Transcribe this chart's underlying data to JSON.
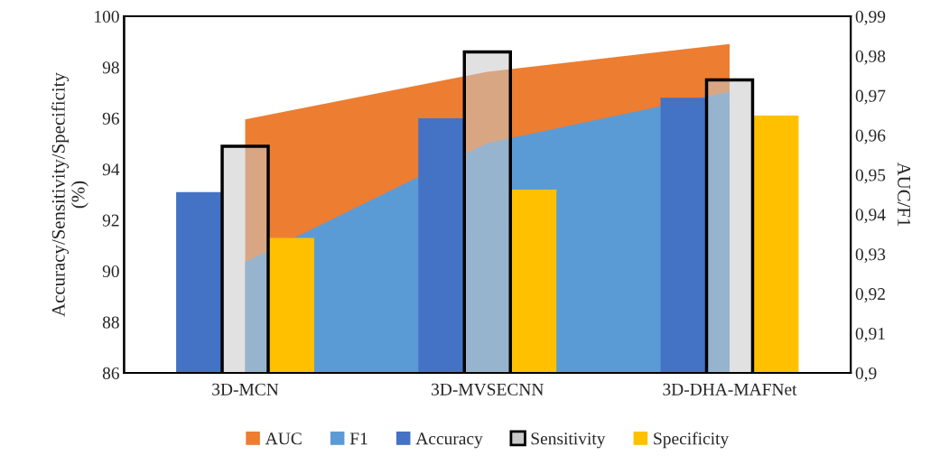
{
  "chart_data": {
    "type": "bar",
    "ylabel": "Accuracy/Sensitivity/Specificity\n(%)",
    "y2label": "AUC/F1",
    "categories": [
      "3D-MCN",
      "3D-MVSECNN",
      "3D-DHA-MAFNet"
    ],
    "series": [
      {
        "name": "AUC",
        "type": "area",
        "axis": "y2",
        "color": "#ed7d31",
        "values": [
          0.964,
          0.976,
          0.983
        ]
      },
      {
        "name": "F1",
        "type": "area",
        "axis": "y2",
        "color": "#5b9bd5",
        "values": [
          0.928,
          0.958,
          0.971
        ]
      },
      {
        "name": "Accuracy",
        "color": "#4472c4",
        "values": [
          93.1,
          96.0,
          96.8
        ]
      },
      {
        "name": "Sensitivity",
        "color": "#c9c9c9",
        "values": [
          94.9,
          98.6,
          97.5
        ]
      },
      {
        "name": "Specificity",
        "color": "#ffc000",
        "values": [
          91.3,
          93.2,
          96.1
        ]
      }
    ],
    "ylim": [
      86,
      100
    ],
    "yticks": [
      86,
      88,
      90,
      92,
      94,
      96,
      98,
      100
    ],
    "y2lim": [
      0.9,
      0.99
    ],
    "y2ticks": [
      {
        "value": 0.9,
        "label": "0,9"
      },
      {
        "value": 0.91,
        "label": "0,91"
      },
      {
        "value": 0.92,
        "label": "0,92"
      },
      {
        "value": 0.93,
        "label": "0,93"
      },
      {
        "value": 0.94,
        "label": "0,94"
      },
      {
        "value": 0.95,
        "label": "0,95"
      },
      {
        "value": 0.96,
        "label": "0,96"
      },
      {
        "value": 0.97,
        "label": "0,97"
      },
      {
        "value": 0.98,
        "label": "0,98"
      },
      {
        "value": 0.99,
        "label": "0,99"
      }
    ],
    "grid": false,
    "legend": "bottom"
  }
}
